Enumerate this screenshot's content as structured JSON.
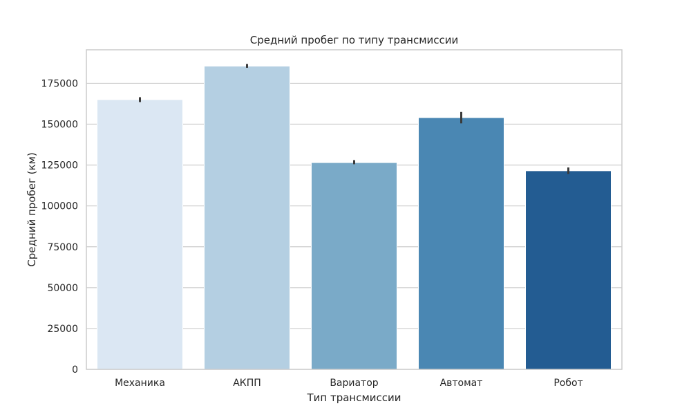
{
  "chart_data": {
    "type": "bar",
    "title": "Средний пробег по типу трансмиссии",
    "xlabel": "Тип трансмиссии",
    "ylabel": "Средний пробег (км)",
    "categories": [
      "Механика",
      "АКПП",
      "Вариатор",
      "Автомат",
      "Робот"
    ],
    "values": [
      165000,
      185500,
      126500,
      154000,
      121500
    ],
    "error_bars": [
      [
        163500,
        166500
      ],
      [
        184500,
        186800
      ],
      [
        125500,
        128000
      ],
      [
        150500,
        157500
      ],
      [
        119500,
        123500
      ]
    ],
    "colors": [
      "#dbe7f3",
      "#b4cfe2",
      "#7aaac8",
      "#4a87b3",
      "#235c92"
    ],
    "ylim": [
      0,
      195500
    ],
    "yticks": [
      0,
      25000,
      50000,
      75000,
      100000,
      125000,
      150000,
      175000
    ],
    "grid": true
  }
}
